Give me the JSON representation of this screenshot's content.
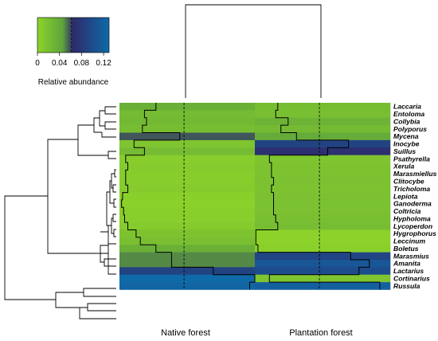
{
  "chart_data": {
    "type": "heatmap",
    "columns": [
      "Native forest",
      "Plantation forest"
    ],
    "rows": [
      "Laccaria",
      "Entoloma",
      "Collybia",
      "Polyporus",
      "Mycena",
      "Inocybe",
      "Suillus",
      "Psathyrella",
      "Xerula",
      "Marasmiellus",
      "Clitocybe",
      "Tricholoma",
      "Lepiota",
      "Ganoderma",
      "Coltricia",
      "Hypholoma",
      "Lycoperdon",
      "Hygrophorus",
      "Leccinum",
      "Boletus",
      "Marasmius",
      "Amanita",
      "Lactarius",
      "Cortinarius",
      "Russula"
    ],
    "values": [
      [
        0.035,
        0.022
      ],
      [
        0.024,
        0.02
      ],
      [
        0.026,
        0.032
      ],
      [
        0.022,
        0.025
      ],
      [
        0.058,
        0.04
      ],
      [
        0.014,
        0.09
      ],
      [
        0.024,
        0.07
      ],
      [
        0.006,
        0.014
      ],
      [
        0.008,
        0.016
      ],
      [
        0.006,
        0.016
      ],
      [
        0.006,
        0.018
      ],
      [
        0.008,
        0.016
      ],
      [
        0.003,
        0.018
      ],
      [
        0.002,
        0.018
      ],
      [
        0.004,
        0.018
      ],
      [
        0.005,
        0.02
      ],
      [
        0.008,
        0.022
      ],
      [
        0.016,
        0.001
      ],
      [
        0.02,
        0.001
      ],
      [
        0.035,
        0.003
      ],
      [
        0.05,
        0.092
      ],
      [
        0.05,
        0.11
      ],
      [
        0.09,
        0.1
      ],
      [
        0.13,
        0.014
      ],
      [
        0.125,
        0.12
      ]
    ],
    "legend": {
      "title": "Relative abundance",
      "ticks": [
        0,
        0.04,
        0.08,
        0.12
      ],
      "tick_labels": [
        "0",
        "0.04",
        "0.08",
        "0.12"
      ],
      "range": [
        0,
        0.13
      ],
      "dashed_mark": 0.062,
      "colors": [
        "#8dd32a",
        "#5fa53b",
        "#2e2a6b",
        "#0f6aa8"
      ]
    },
    "column_dashed_reference": 0.062,
    "row_dendrogram_order": [
      "Laccaria",
      "Entoloma",
      "Collybia",
      "Polyporus",
      "Mycena",
      "Inocybe",
      "Suillus",
      "Psathyrella",
      "Xerula",
      "Marasmiellus",
      "Clitocybe",
      "Tricholoma",
      "Lepiota",
      "Ganoderma",
      "Coltricia",
      "Hypholoma",
      "Lycoperdon",
      "Hygrophorus",
      "Leccinum",
      "Boletus",
      "Marasmius",
      "Amanita",
      "Lactarius",
      "Cortinarius",
      "Russula"
    ]
  }
}
